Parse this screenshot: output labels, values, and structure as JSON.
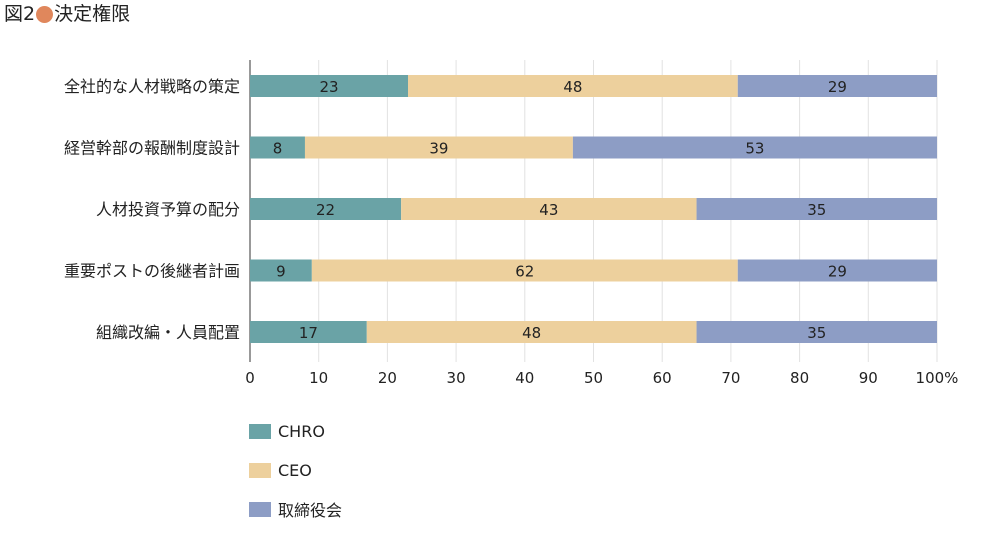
{
  "figure": {
    "number": "図2",
    "title": "決定権限",
    "marker_color": "#e0875c"
  },
  "chart_data": {
    "type": "bar",
    "orientation": "horizontal",
    "stacked": true,
    "categories": [
      "全社的な人材戦略の策定",
      "経営幹部の報酬制度設計",
      "人材投資予算の配分",
      "重要ポストの後継者計画",
      "組織改編・人員配置"
    ],
    "series": [
      {
        "name": "CHRO",
        "color": "#6aa3a6",
        "values": [
          23,
          8,
          22,
          9,
          17
        ]
      },
      {
        "name": "CEO",
        "color": "#edd09d",
        "values": [
          48,
          39,
          43,
          62,
          48
        ]
      },
      {
        "name": "取締役会",
        "color": "#8d9dc5",
        "values": [
          29,
          53,
          35,
          29,
          35
        ]
      }
    ],
    "xlim": [
      0,
      100
    ],
    "x_ticks": [
      "0",
      "10",
      "20",
      "30",
      "40",
      "50",
      "60",
      "70",
      "80",
      "90",
      "100%"
    ],
    "grid": true,
    "legend_position": "bottom-left"
  }
}
